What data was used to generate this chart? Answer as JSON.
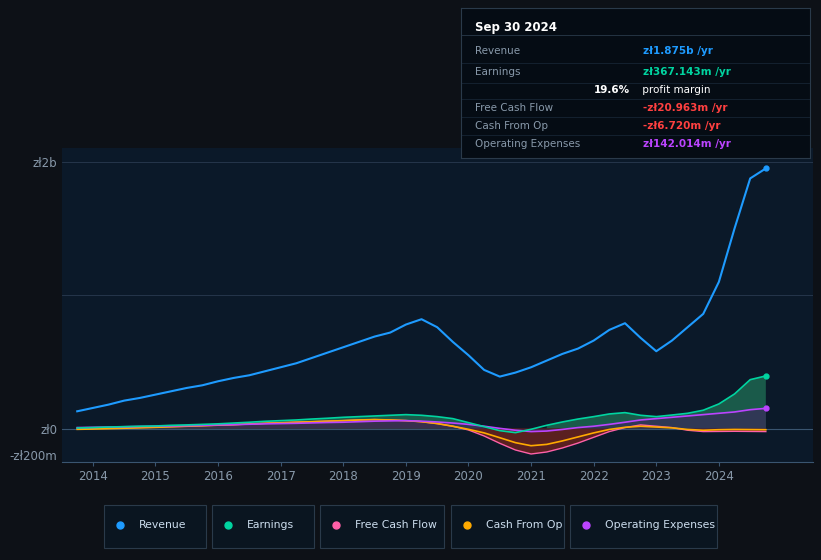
{
  "bg_color": "#0d1117",
  "plot_bg_color": "#0b1929",
  "title_box_bg": "#050a0f",
  "ylabel_top": "zł2b",
  "ylabel_zero": "zł0",
  "ylabel_neg": "-zł200m",
  "x_labels": [
    "2014",
    "2015",
    "2016",
    "2017",
    "2018",
    "2019",
    "2020",
    "2021",
    "2022",
    "2023",
    "2024"
  ],
  "x_ticks": [
    2014,
    2015,
    2016,
    2017,
    2018,
    2019,
    2020,
    2021,
    2022,
    2023,
    2024
  ],
  "years": [
    2013.75,
    2014.0,
    2014.25,
    2014.5,
    2014.75,
    2015.0,
    2015.25,
    2015.5,
    2015.75,
    2016.0,
    2016.25,
    2016.5,
    2016.75,
    2017.0,
    2017.25,
    2017.5,
    2017.75,
    2018.0,
    2018.25,
    2018.5,
    2018.75,
    2019.0,
    2019.25,
    2019.5,
    2019.75,
    2020.0,
    2020.25,
    2020.5,
    2020.75,
    2021.0,
    2021.25,
    2021.5,
    2021.75,
    2022.0,
    2022.25,
    2022.5,
    2022.75,
    2023.0,
    2023.25,
    2023.5,
    2023.75,
    2024.0,
    2024.25,
    2024.5,
    2024.75
  ],
  "revenue": [
    130,
    155,
    180,
    210,
    230,
    255,
    280,
    305,
    325,
    355,
    380,
    400,
    430,
    460,
    490,
    530,
    570,
    610,
    650,
    690,
    720,
    780,
    820,
    760,
    650,
    550,
    440,
    390,
    420,
    460,
    510,
    560,
    600,
    660,
    740,
    790,
    680,
    580,
    660,
    760,
    860,
    1100,
    1500,
    1875,
    1950
  ],
  "earnings": [
    5,
    8,
    12,
    15,
    18,
    20,
    25,
    28,
    32,
    36,
    42,
    48,
    55,
    60,
    65,
    72,
    78,
    85,
    90,
    95,
    100,
    105,
    100,
    90,
    75,
    45,
    15,
    -15,
    -30,
    -5,
    25,
    50,
    72,
    90,
    110,
    120,
    100,
    90,
    102,
    115,
    138,
    185,
    260,
    367,
    395
  ],
  "free_cash_flow": [
    0,
    2,
    5,
    8,
    10,
    12,
    15,
    18,
    22,
    26,
    30,
    35,
    40,
    44,
    48,
    52,
    56,
    60,
    65,
    68,
    65,
    60,
    52,
    38,
    18,
    -10,
    -55,
    -110,
    -160,
    -190,
    -175,
    -145,
    -108,
    -65,
    -22,
    8,
    28,
    18,
    8,
    -12,
    -22,
    -21,
    -20,
    -21,
    -22
  ],
  "cash_from_op": [
    -5,
    -3,
    0,
    3,
    6,
    10,
    14,
    18,
    22,
    26,
    30,
    35,
    40,
    44,
    48,
    52,
    56,
    60,
    65,
    68,
    65,
    60,
    52,
    38,
    18,
    -5,
    -32,
    -68,
    -105,
    -128,
    -118,
    -92,
    -62,
    -32,
    -6,
    10,
    18,
    12,
    6,
    -6,
    -12,
    -8,
    -6,
    -7,
    -8
  ],
  "operating_expenses": [
    8,
    10,
    12,
    14,
    16,
    18,
    20,
    22,
    25,
    28,
    30,
    33,
    36,
    38,
    40,
    43,
    46,
    48,
    52,
    56,
    58,
    60,
    56,
    50,
    42,
    32,
    18,
    2,
    -12,
    -22,
    -18,
    -6,
    8,
    18,
    32,
    48,
    65,
    75,
    85,
    95,
    105,
    115,
    125,
    142,
    152
  ],
  "revenue_color": "#1e9bff",
  "earnings_color": "#00d4a0",
  "fcf_color": "#ff60a8",
  "cfo_color": "#ffaa00",
  "opex_color": "#bb44ff",
  "fill_earnings_pos": "#1a5a4a",
  "fill_earnings_neg": "#5a1a1a",
  "fill_cfo_pos": "#2a4a2a",
  "fill_cfo_neg": "#6a1a1a",
  "fill_fcf_pos": "#3a3a3a",
  "fill_fcf_neg": "#5a2020",
  "fill_opex_pos": "#3a2a5a",
  "fill_opex_neg": "#3a2a5a",
  "ylim": [
    -250,
    2100
  ],
  "xlim": [
    2013.5,
    2025.5
  ],
  "info_date": "Sep 30 2024",
  "info_rows": [
    {
      "label": "Revenue",
      "value": "zł1.875b /yr",
      "vcolor": "#1e9bff",
      "bold_label": false,
      "indent": false
    },
    {
      "label": "Earnings",
      "value": "zł367.143m /yr",
      "vcolor": "#00d4a0",
      "bold_label": false,
      "indent": false
    },
    {
      "label": "",
      "value": "19.6% profit margin",
      "vcolor": "#ffffff",
      "bold_label": true,
      "indent": true
    },
    {
      "label": "Free Cash Flow",
      "value": "-zł20.963m /yr",
      "vcolor": "#ff4040",
      "bold_label": false,
      "indent": false
    },
    {
      "label": "Cash From Op",
      "value": "-zł6.720m /yr",
      "vcolor": "#ff4040",
      "bold_label": false,
      "indent": false
    },
    {
      "label": "Operating Expenses",
      "value": "zł142.014m /yr",
      "vcolor": "#bb44ff",
      "bold_label": false,
      "indent": false
    }
  ],
  "legend_items": [
    {
      "label": "Revenue",
      "color": "#1e9bff"
    },
    {
      "label": "Earnings",
      "color": "#00d4a0"
    },
    {
      "label": "Free Cash Flow",
      "color": "#ff60a8"
    },
    {
      "label": "Cash From Op",
      "color": "#ffaa00"
    },
    {
      "label": "Operating Expenses",
      "color": "#bb44ff"
    }
  ]
}
